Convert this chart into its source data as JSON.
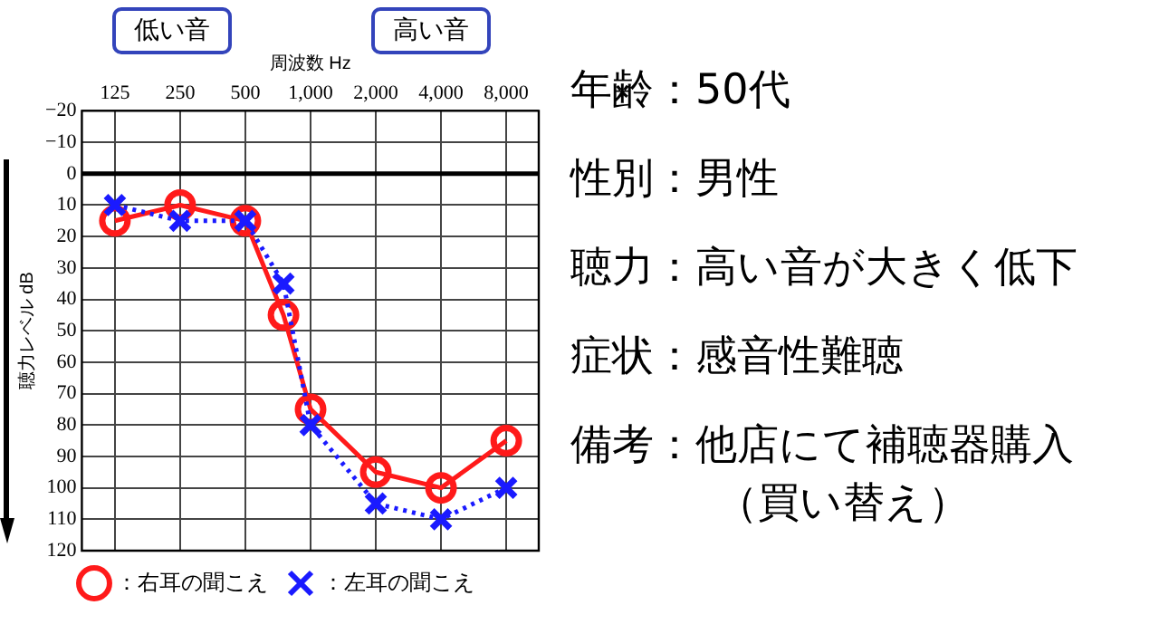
{
  "chart_data": {
    "type": "line",
    "xlabel": "周波数 Hz",
    "ylabel": "聴力レベル dB",
    "x": [
      125,
      250,
      500,
      750,
      1000,
      2000,
      4000,
      8000
    ],
    "series": [
      {
        "name": "：右耳の聞こえ",
        "color": "#ff1a1a",
        "marker": "circle",
        "line_style": "solid",
        "values": [
          15,
          10,
          15,
          45,
          75,
          95,
          100,
          85
        ]
      },
      {
        "name": "：左耳の聞こえ",
        "color": "#1a1aff",
        "marker": "cross",
        "line_style": "dotted",
        "values": [
          10,
          15,
          15,
          35,
          80,
          105,
          110,
          100
        ]
      }
    ],
    "log": "x",
    "xlim": [
      88,
      11300
    ],
    "xticks": [
      125,
      250,
      500,
      {
        "value": 1000,
        "label": "1,000"
      },
      {
        "value": 2000,
        "label": "2,000"
      },
      {
        "value": 4000,
        "label": "4,000"
      },
      {
        "value": 8000,
        "label": "8,000"
      }
    ],
    "ylim": [
      120,
      -20
    ],
    "yticks": [
      {
        "value": -20,
        "label": "−20"
      },
      {
        "value": -10,
        "label": "−10"
      },
      0,
      10,
      20,
      30,
      40,
      50,
      60,
      70,
      80,
      90,
      100,
      110,
      120
    ],
    "ref_lines": [
      {
        "axis": "y",
        "value": 0,
        "color": "#000000"
      }
    ],
    "grid": true,
    "legend": "bottom",
    "annotations": [
      "低い音",
      "高い音",
      "年齢：50代",
      "性別：男性",
      "聴力：高い音が大きく低下",
      "症状：感音性難聴",
      "備考：他店にて補聴器購入（買い替え）"
    ]
  }
}
